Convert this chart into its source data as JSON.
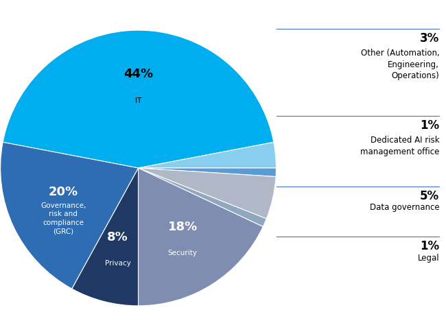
{
  "slices": [
    {
      "pct": 44,
      "color": "#00AEEF",
      "text_color": "#000000",
      "inside": true,
      "pct_label": "44%",
      "name_label": "IT"
    },
    {
      "pct": 3,
      "color": "#87CEEF",
      "text_color": "#000000",
      "inside": false,
      "pct_label": "3%",
      "name_label": "Other"
    },
    {
      "pct": 1,
      "color": "#5B9BD5",
      "text_color": "#000000",
      "inside": false,
      "pct_label": "1%",
      "name_label": "Dedicated AI"
    },
    {
      "pct": 5,
      "color": "#B0B8C8",
      "text_color": "#000000",
      "inside": false,
      "pct_label": "5%",
      "name_label": "Data governance"
    },
    {
      "pct": 1,
      "color": "#8FA8BF",
      "text_color": "#000000",
      "inside": false,
      "pct_label": "1%",
      "name_label": "Legal"
    },
    {
      "pct": 18,
      "color": "#7F8DB0",
      "text_color": "#FFFFFF",
      "inside": true,
      "pct_label": "18%",
      "name_label": "Security"
    },
    {
      "pct": 8,
      "color": "#1F3864",
      "text_color": "#FFFFFF",
      "inside": true,
      "pct_label": "8%",
      "name_label": "Privacy"
    },
    {
      "pct": 20,
      "color": "#2E6DB4",
      "text_color": "#FFFFFF",
      "inside": true,
      "pct_label": "20%",
      "name_label": "Governance,\nrisk and\ncompliance\n(GRC)"
    }
  ],
  "legend_entries": [
    {
      "pct": "3%",
      "label": "Other (Automation,\nEngineering,\nOperations)"
    },
    {
      "pct": "1%",
      "label": "Dedicated AI risk\nmanagement office"
    },
    {
      "pct": "5%",
      "label": "Data governance"
    },
    {
      "pct": "1%",
      "label": "Legal"
    }
  ],
  "startangle": 169.2,
  "label_r": 0.6,
  "background_color": "#FFFFFF",
  "line_color": "#4472C4"
}
